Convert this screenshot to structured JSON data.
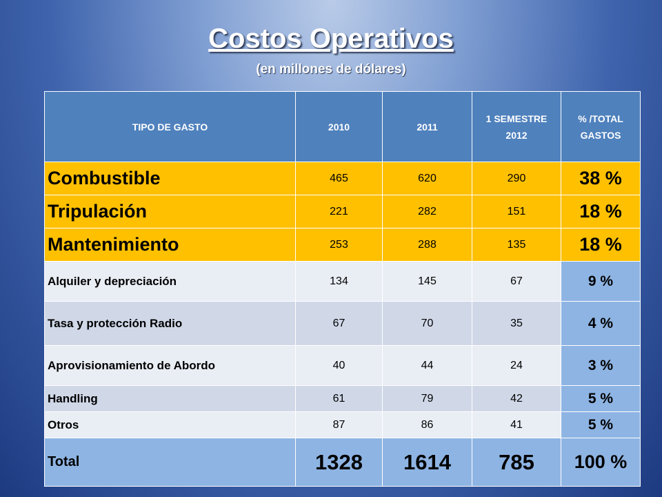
{
  "title": "Costos Operativos",
  "subtitle": "(en millones de dólares)",
  "headers": [
    "TIPO DE GASTO",
    "2010",
    "2011",
    "1 SEMESTRE 2012",
    "% /TOTAL GASTOS"
  ],
  "rows": [
    {
      "name": "Combustible",
      "y2010": "465",
      "y2011": "620",
      "s2012": "290",
      "pct": "38 %"
    },
    {
      "name": "Tripulación",
      "y2010": "221",
      "y2011": "282",
      "s2012": "151",
      "pct": "18 %"
    },
    {
      "name": "Mantenimiento",
      "y2010": "253",
      "y2011": "288",
      "s2012": "135",
      "pct": "18 %"
    },
    {
      "name": "Alquiler y depreciación",
      "y2010": "134",
      "y2011": "145",
      "s2012": "67",
      "pct": "9 %"
    },
    {
      "name": "Tasa y protección Radio",
      "y2010": "67",
      "y2011": "70",
      "s2012": "35",
      "pct": "4 %"
    },
    {
      "name": "Aprovisionamiento de Abordo",
      "y2010": "40",
      "y2011": "44",
      "s2012": "24",
      "pct": "3 %"
    },
    {
      "name": "Handling",
      "y2010": "61",
      "y2011": "79",
      "s2012": "42",
      "pct": "5 %"
    },
    {
      "name": "Otros",
      "y2010": "87",
      "y2011": "86",
      "s2012": "41",
      "pct": "5 %"
    }
  ],
  "total": {
    "name": "Total",
    "y2010": "1328",
    "y2011": "1614",
    "s2012": "785",
    "pct": "100 %"
  },
  "colors": {
    "header": "#4f81bd",
    "highlight": "#ffc000",
    "pct_cell": "#8eb4e3"
  }
}
